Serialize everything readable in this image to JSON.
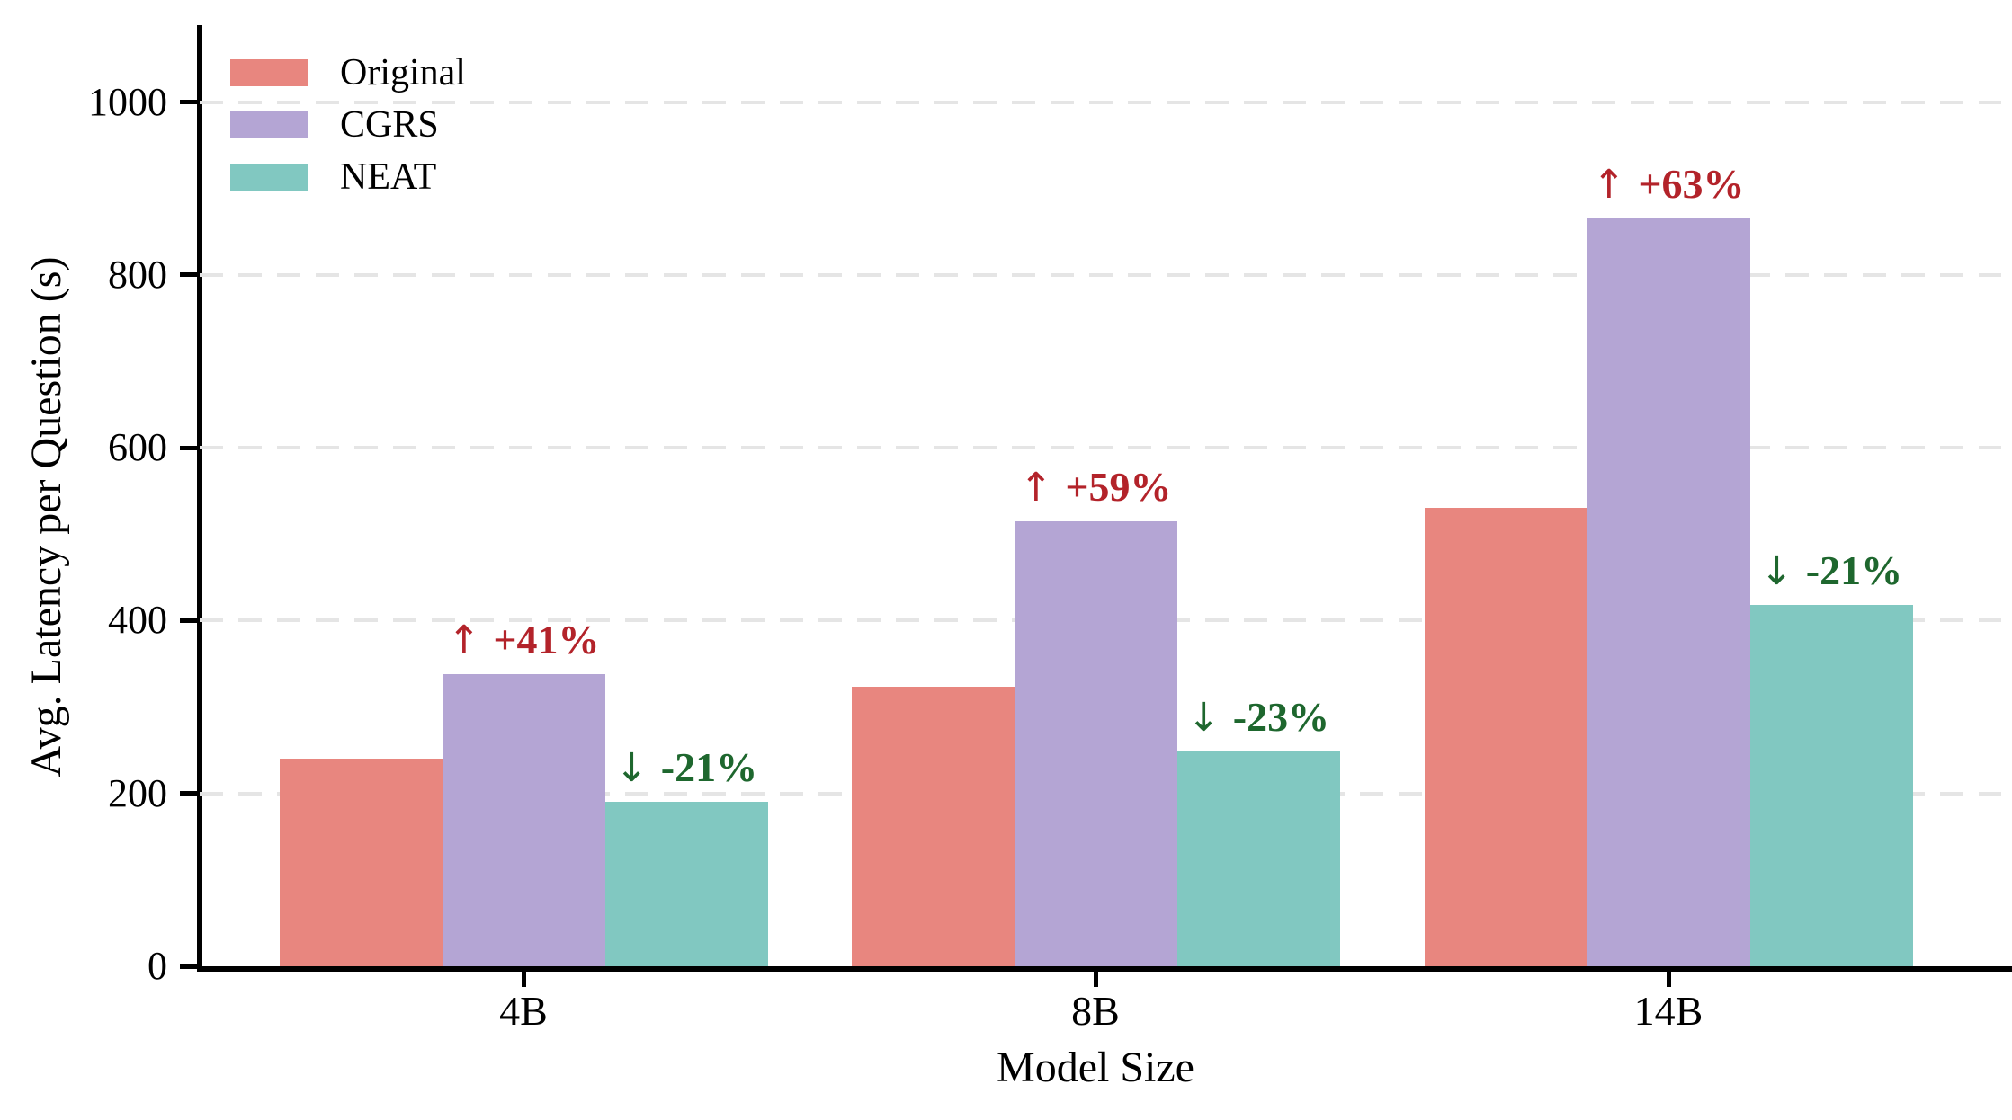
{
  "chart_data": {
    "type": "bar",
    "title": "",
    "xlabel": "Model Size",
    "ylabel": "Avg. Latency per Question (s)",
    "categories": [
      "4B",
      "8B",
      "14B"
    ],
    "series": [
      {
        "name": "Original",
        "color": "#e8867f",
        "values": [
          240,
          324,
          530
        ]
      },
      {
        "name": "CGRS",
        "color": "#b4a5d4",
        "values": [
          338,
          515,
          865
        ]
      },
      {
        "name": "NEAT",
        "color": "#81c8c1",
        "values": [
          190,
          249,
          418
        ]
      }
    ],
    "annotations": [
      {
        "category": "4B",
        "series": "CGRS",
        "arrow": "↑",
        "label": "+41%",
        "color": "#b3232a"
      },
      {
        "category": "4B",
        "series": "NEAT",
        "arrow": "↓",
        "label": "-21%",
        "color": "#1e672e"
      },
      {
        "category": "8B",
        "series": "CGRS",
        "arrow": "↑",
        "label": "+59%",
        "color": "#b3232a"
      },
      {
        "category": "8B",
        "series": "NEAT",
        "arrow": "↓",
        "label": "-23%",
        "color": "#1e672e"
      },
      {
        "category": "14B",
        "series": "CGRS",
        "arrow": "↑",
        "label": "+63%",
        "color": "#b3232a"
      },
      {
        "category": "14B",
        "series": "NEAT",
        "arrow": "↓",
        "label": "-21%",
        "color": "#1e672e"
      }
    ],
    "yticks": [
      0,
      200,
      400,
      600,
      800,
      1000
    ],
    "ylim": [
      0,
      1087
    ],
    "grid": "horizontal-dashed",
    "grid_color": "#e5e5e5",
    "axis_color": "#000000",
    "legend": {
      "position": "upper-left",
      "entries": [
        "Original",
        "CGRS",
        "NEAT"
      ]
    }
  }
}
